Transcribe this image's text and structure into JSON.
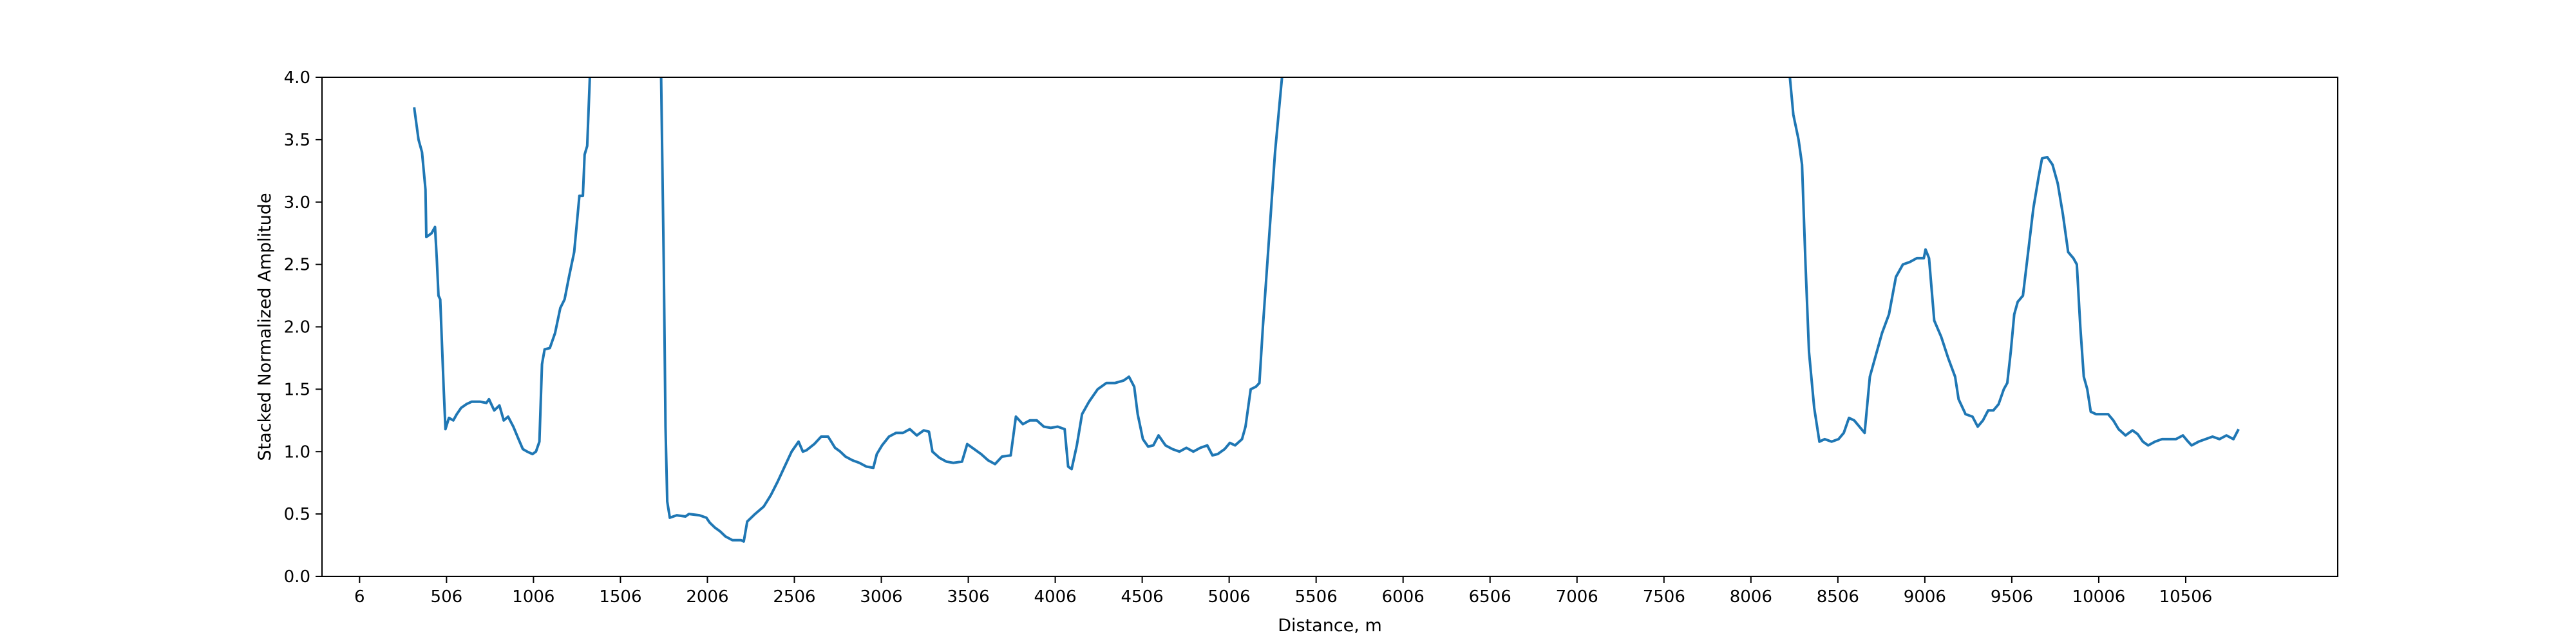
{
  "chart_data": {
    "type": "line",
    "title": "",
    "xlabel": "Distance, m",
    "ylabel": "Stacked Normalized Amplitude",
    "xlim": [
      -210,
      11380
    ],
    "ylim": [
      0,
      4.0
    ],
    "grid": false,
    "x_ticks": [
      6,
      506,
      1006,
      1506,
      2006,
      2506,
      3006,
      3506,
      4006,
      4506,
      5006,
      5506,
      6006,
      6506,
      7006,
      7506,
      8006,
      8506,
      9006,
      9506,
      10006,
      10506
    ],
    "x_tick_labels": [
      "6",
      "506",
      "1006",
      "1506",
      "2006",
      "2506",
      "3006",
      "3506",
      "4006",
      "4506",
      "5006",
      "5506",
      "6006",
      "6506",
      "7006",
      "7506",
      "8006",
      "8506",
      "9006",
      "9506",
      "10006",
      "10506"
    ],
    "y_ticks": [
      0.0,
      0.5,
      1.0,
      1.5,
      2.0,
      2.5,
      3.0,
      3.5,
      4.0
    ],
    "y_tick_labels": [
      "0.0",
      "0.5",
      "1.0",
      "1.5",
      "2.0",
      "2.5",
      "3.0",
      "3.5",
      "4.0"
    ],
    "series": [
      {
        "color": "#1f77b4",
        "segments": [
          [
            [
              320,
              3.76
            ],
            [
              345,
              3.5
            ],
            [
              365,
              3.4
            ],
            [
              385,
              3.1
            ],
            [
              390,
              2.72
            ],
            [
              420,
              2.75
            ],
            [
              440,
              2.8
            ],
            [
              450,
              2.55
            ],
            [
              460,
              2.25
            ],
            [
              470,
              2.22
            ],
            [
              490,
              1.5
            ],
            [
              500,
              1.18
            ],
            [
              520,
              1.27
            ],
            [
              545,
              1.25
            ],
            [
              565,
              1.3
            ],
            [
              590,
              1.35
            ],
            [
              620,
              1.38
            ],
            [
              650,
              1.4
            ],
            [
              700,
              1.4
            ],
            [
              735,
              1.39
            ],
            [
              750,
              1.42
            ],
            [
              780,
              1.33
            ],
            [
              810,
              1.37
            ],
            [
              835,
              1.25
            ],
            [
              860,
              1.28
            ],
            [
              890,
              1.2
            ],
            [
              920,
              1.1
            ],
            [
              945,
              1.02
            ],
            [
              970,
              1.0
            ],
            [
              1000,
              0.98
            ],
            [
              1020,
              1.0
            ],
            [
              1040,
              1.08
            ],
            [
              1055,
              1.7
            ],
            [
              1070,
              1.82
            ],
            [
              1100,
              1.83
            ],
            [
              1130,
              1.95
            ],
            [
              1160,
              2.15
            ],
            [
              1185,
              2.22
            ],
            [
              1210,
              2.4
            ],
            [
              1240,
              2.6
            ],
            [
              1270,
              3.05
            ],
            [
              1290,
              3.05
            ],
            [
              1300,
              3.38
            ],
            [
              1315,
              3.45
            ],
            [
              1330,
              4.0
            ]
          ],
          [
            [
              1740,
              4.0
            ],
            [
              1755,
              2.5
            ],
            [
              1765,
              1.2
            ],
            [
              1775,
              0.6
            ],
            [
              1790,
              0.47
            ],
            [
              1830,
              0.49
            ],
            [
              1880,
              0.48
            ],
            [
              1900,
              0.5
            ],
            [
              1960,
              0.49
            ],
            [
              2000,
              0.47
            ],
            [
              2020,
              0.43
            ],
            [
              2050,
              0.39
            ],
            [
              2080,
              0.36
            ],
            [
              2110,
              0.32
            ],
            [
              2150,
              0.29
            ],
            [
              2200,
              0.29
            ],
            [
              2215,
              0.28
            ],
            [
              2235,
              0.44
            ],
            [
              2280,
              0.5
            ],
            [
              2330,
              0.56
            ],
            [
              2370,
              0.65
            ],
            [
              2410,
              0.76
            ],
            [
              2450,
              0.88
            ],
            [
              2490,
              1.0
            ],
            [
              2530,
              1.08
            ],
            [
              2555,
              1.0
            ],
            [
              2575,
              1.01
            ],
            [
              2620,
              1.06
            ],
            [
              2660,
              1.12
            ],
            [
              2700,
              1.12
            ],
            [
              2740,
              1.03
            ],
            [
              2770,
              1.0
            ],
            [
              2800,
              0.96
            ],
            [
              2840,
              0.93
            ],
            [
              2880,
              0.91
            ],
            [
              2920,
              0.88
            ],
            [
              2960,
              0.87
            ],
            [
              2980,
              0.98
            ],
            [
              3010,
              1.05
            ],
            [
              3050,
              1.12
            ],
            [
              3090,
              1.15
            ],
            [
              3130,
              1.15
            ],
            [
              3170,
              1.18
            ],
            [
              3210,
              1.13
            ],
            [
              3250,
              1.17
            ],
            [
              3280,
              1.16
            ],
            [
              3300,
              1.0
            ],
            [
              3340,
              0.95
            ],
            [
              3380,
              0.92
            ],
            [
              3420,
              0.91
            ],
            [
              3470,
              0.92
            ],
            [
              3500,
              1.06
            ],
            [
              3540,
              1.02
            ],
            [
              3580,
              0.98
            ],
            [
              3620,
              0.93
            ],
            [
              3660,
              0.9
            ],
            [
              3700,
              0.96
            ],
            [
              3750,
              0.97
            ],
            [
              3780,
              1.28
            ],
            [
              3820,
              1.22
            ],
            [
              3860,
              1.25
            ],
            [
              3900,
              1.25
            ],
            [
              3940,
              1.2
            ],
            [
              3980,
              1.19
            ],
            [
              4020,
              1.2
            ],
            [
              4060,
              1.18
            ],
            [
              4080,
              0.88
            ],
            [
              4100,
              0.86
            ],
            [
              4130,
              1.05
            ],
            [
              4160,
              1.3
            ],
            [
              4200,
              1.4
            ],
            [
              4250,
              1.5
            ],
            [
              4300,
              1.55
            ],
            [
              4350,
              1.55
            ],
            [
              4400,
              1.57
            ],
            [
              4430,
              1.6
            ],
            [
              4460,
              1.52
            ],
            [
              4480,
              1.3
            ],
            [
              4510,
              1.1
            ],
            [
              4540,
              1.04
            ],
            [
              4570,
              1.05
            ],
            [
              4600,
              1.13
            ],
            [
              4640,
              1.05
            ],
            [
              4680,
              1.02
            ],
            [
              4720,
              1.0
            ],
            [
              4760,
              1.03
            ],
            [
              4800,
              1.0
            ],
            [
              4840,
              1.03
            ],
            [
              4880,
              1.05
            ],
            [
              4910,
              0.97
            ],
            [
              4940,
              0.98
            ],
            [
              4980,
              1.02
            ],
            [
              5010,
              1.07
            ],
            [
              5040,
              1.05
            ],
            [
              5080,
              1.1
            ],
            [
              5100,
              1.2
            ],
            [
              5130,
              1.5
            ],
            [
              5160,
              1.52
            ],
            [
              5180,
              1.55
            ],
            [
              5200,
              2.0
            ],
            [
              5220,
              2.4
            ],
            [
              5250,
              3.0
            ],
            [
              5270,
              3.4
            ],
            [
              5290,
              3.7
            ],
            [
              5310,
              4.0
            ]
          ],
          [
            [
              8230,
              4.0
            ],
            [
              8250,
              3.7
            ],
            [
              8280,
              3.5
            ],
            [
              8300,
              3.3
            ],
            [
              8320,
              2.5
            ],
            [
              8340,
              1.8
            ],
            [
              8370,
              1.35
            ],
            [
              8400,
              1.08
            ],
            [
              8430,
              1.1
            ],
            [
              8470,
              1.08
            ],
            [
              8510,
              1.1
            ],
            [
              8540,
              1.15
            ],
            [
              8570,
              1.27
            ],
            [
              8600,
              1.25
            ],
            [
              8630,
              1.2
            ],
            [
              8660,
              1.15
            ],
            [
              8690,
              1.6
            ],
            [
              8720,
              1.75
            ],
            [
              8760,
              1.95
            ],
            [
              8800,
              2.1
            ],
            [
              8840,
              2.4
            ],
            [
              8880,
              2.5
            ],
            [
              8920,
              2.52
            ],
            [
              8960,
              2.55
            ],
            [
              9000,
              2.55
            ],
            [
              9010,
              2.62
            ],
            [
              9030,
              2.55
            ],
            [
              9060,
              2.05
            ],
            [
              9100,
              1.92
            ],
            [
              9140,
              1.75
            ],
            [
              9180,
              1.6
            ],
            [
              9200,
              1.42
            ],
            [
              9240,
              1.3
            ],
            [
              9280,
              1.28
            ],
            [
              9310,
              1.2
            ],
            [
              9340,
              1.25
            ],
            [
              9370,
              1.33
            ],
            [
              9400,
              1.33
            ],
            [
              9430,
              1.38
            ],
            [
              9460,
              1.5
            ],
            [
              9480,
              1.55
            ],
            [
              9500,
              1.8
            ],
            [
              9520,
              2.1
            ],
            [
              9540,
              2.2
            ],
            [
              9570,
              2.25
            ],
            [
              9600,
              2.6
            ],
            [
              9630,
              2.95
            ],
            [
              9660,
              3.2
            ],
            [
              9680,
              3.35
            ],
            [
              9710,
              3.36
            ],
            [
              9740,
              3.3
            ],
            [
              9770,
              3.15
            ],
            [
              9800,
              2.9
            ],
            [
              9830,
              2.6
            ],
            [
              9860,
              2.55
            ],
            [
              9880,
              2.5
            ],
            [
              9900,
              2.0
            ],
            [
              9920,
              1.6
            ],
            [
              9940,
              1.5
            ],
            [
              9960,
              1.32
            ],
            [
              9990,
              1.3
            ],
            [
              10030,
              1.3
            ],
            [
              10060,
              1.3
            ],
            [
              10090,
              1.25
            ],
            [
              10120,
              1.18
            ],
            [
              10160,
              1.13
            ],
            [
              10200,
              1.17
            ],
            [
              10230,
              1.14
            ],
            [
              10260,
              1.08
            ],
            [
              10290,
              1.05
            ],
            [
              10330,
              1.08
            ],
            [
              10370,
              1.1
            ],
            [
              10410,
              1.1
            ],
            [
              10450,
              1.1
            ],
            [
              10490,
              1.13
            ],
            [
              10520,
              1.08
            ],
            [
              10540,
              1.05
            ],
            [
              10580,
              1.08
            ],
            [
              10620,
              1.1
            ],
            [
              10660,
              1.12
            ],
            [
              10700,
              1.1
            ],
            [
              10740,
              1.13
            ],
            [
              10780,
              1.1
            ],
            [
              10810,
              1.18
            ]
          ]
        ]
      }
    ]
  }
}
